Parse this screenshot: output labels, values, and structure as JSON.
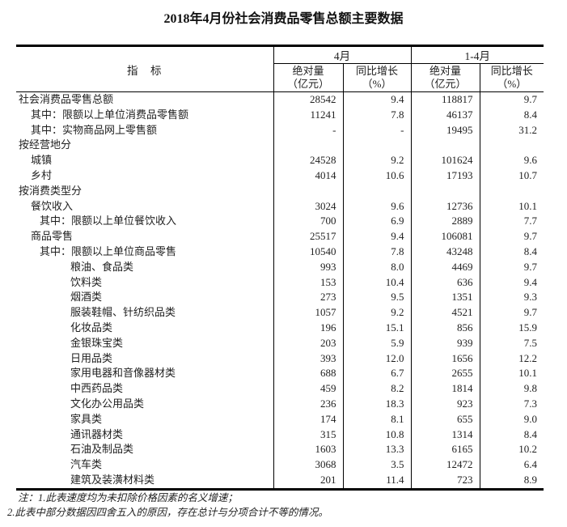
{
  "title": "2018年4月份社会消费品零售总额主要数据",
  "table": {
    "header": {
      "indicator": "指　标",
      "group_april": "4月",
      "group_cum": "1-4月",
      "abs_label": "绝对量",
      "abs_unit": "（亿元）",
      "yoy_label": "同比增长",
      "yoy_unit": "（%）"
    },
    "rows": [
      {
        "label": "社会消费品零售总额",
        "indent": 0,
        "cells": [
          "28542",
          "9.4",
          "118817",
          "9.7"
        ]
      },
      {
        "label": "其中：限额以上单位消费品零售额",
        "indent": 1,
        "cells": [
          "11241",
          "7.8",
          "46137",
          "8.4"
        ]
      },
      {
        "label": "其中：实物商品网上零售额",
        "indent": 1,
        "cells": [
          "-",
          "-",
          "19495",
          "31.2"
        ]
      },
      {
        "label": "按经营地分",
        "indent": 0,
        "cells": [
          "",
          "",
          "",
          ""
        ]
      },
      {
        "label": "城镇",
        "indent": 1,
        "cells": [
          "24528",
          "9.2",
          "101624",
          "9.6"
        ]
      },
      {
        "label": "乡村",
        "indent": 1,
        "cells": [
          "4014",
          "10.6",
          "17193",
          "10.7"
        ]
      },
      {
        "label": "按消费类型分",
        "indent": 0,
        "cells": [
          "",
          "",
          "",
          ""
        ]
      },
      {
        "label": "餐饮收入",
        "indent": 1,
        "cells": [
          "3024",
          "9.6",
          "12736",
          "10.1"
        ]
      },
      {
        "label": "其中：限额以上单位餐饮收入",
        "indent": 2,
        "cells": [
          "700",
          "6.9",
          "2889",
          "7.7"
        ]
      },
      {
        "label": "商品零售",
        "indent": 1,
        "cells": [
          "25517",
          "9.4",
          "106081",
          "9.7"
        ]
      },
      {
        "label": "其中：限额以上单位商品零售",
        "indent": 2,
        "cells": [
          "10540",
          "7.8",
          "43248",
          "8.4"
        ]
      },
      {
        "label": "粮油、食品类",
        "indent": 3,
        "cells": [
          "993",
          "8.0",
          "4469",
          "9.7"
        ]
      },
      {
        "label": "饮料类",
        "indent": 3,
        "cells": [
          "153",
          "10.4",
          "636",
          "9.4"
        ]
      },
      {
        "label": "烟酒类",
        "indent": 3,
        "cells": [
          "273",
          "9.5",
          "1351",
          "9.3"
        ]
      },
      {
        "label": "服装鞋帽、针纺织品类",
        "indent": 3,
        "cells": [
          "1057",
          "9.2",
          "4521",
          "9.7"
        ]
      },
      {
        "label": "化妆品类",
        "indent": 3,
        "cells": [
          "196",
          "15.1",
          "856",
          "15.9"
        ]
      },
      {
        "label": "金银珠宝类",
        "indent": 3,
        "cells": [
          "203",
          "5.9",
          "939",
          "7.5"
        ]
      },
      {
        "label": "日用品类",
        "indent": 3,
        "cells": [
          "393",
          "12.0",
          "1656",
          "12.2"
        ]
      },
      {
        "label": "家用电器和音像器材类",
        "indent": 3,
        "cells": [
          "688",
          "6.7",
          "2655",
          "10.1"
        ]
      },
      {
        "label": "中西药品类",
        "indent": 3,
        "cells": [
          "459",
          "8.2",
          "1814",
          "9.8"
        ]
      },
      {
        "label": "文化办公用品类",
        "indent": 3,
        "cells": [
          "236",
          "18.3",
          "923",
          "7.3"
        ]
      },
      {
        "label": "家具类",
        "indent": 3,
        "cells": [
          "174",
          "8.1",
          "655",
          "9.0"
        ]
      },
      {
        "label": "通讯器材类",
        "indent": 3,
        "cells": [
          "315",
          "10.8",
          "1314",
          "8.4"
        ]
      },
      {
        "label": "石油及制品类",
        "indent": 3,
        "cells": [
          "1603",
          "13.3",
          "6165",
          "10.2"
        ]
      },
      {
        "label": "汽车类",
        "indent": 3,
        "cells": [
          "3068",
          "3.5",
          "12472",
          "6.4"
        ]
      },
      {
        "label": "建筑及装潢材料类",
        "indent": 3,
        "cells": [
          "201",
          "11.4",
          "723",
          "8.9"
        ]
      }
    ]
  },
  "notes": {
    "line1": "注：1.此表速度均为未扣除价格因素的名义增速；",
    "line2": "2.此表中部分数据因四舍五入的原因，存在总计与分项合计不等的情况。"
  }
}
